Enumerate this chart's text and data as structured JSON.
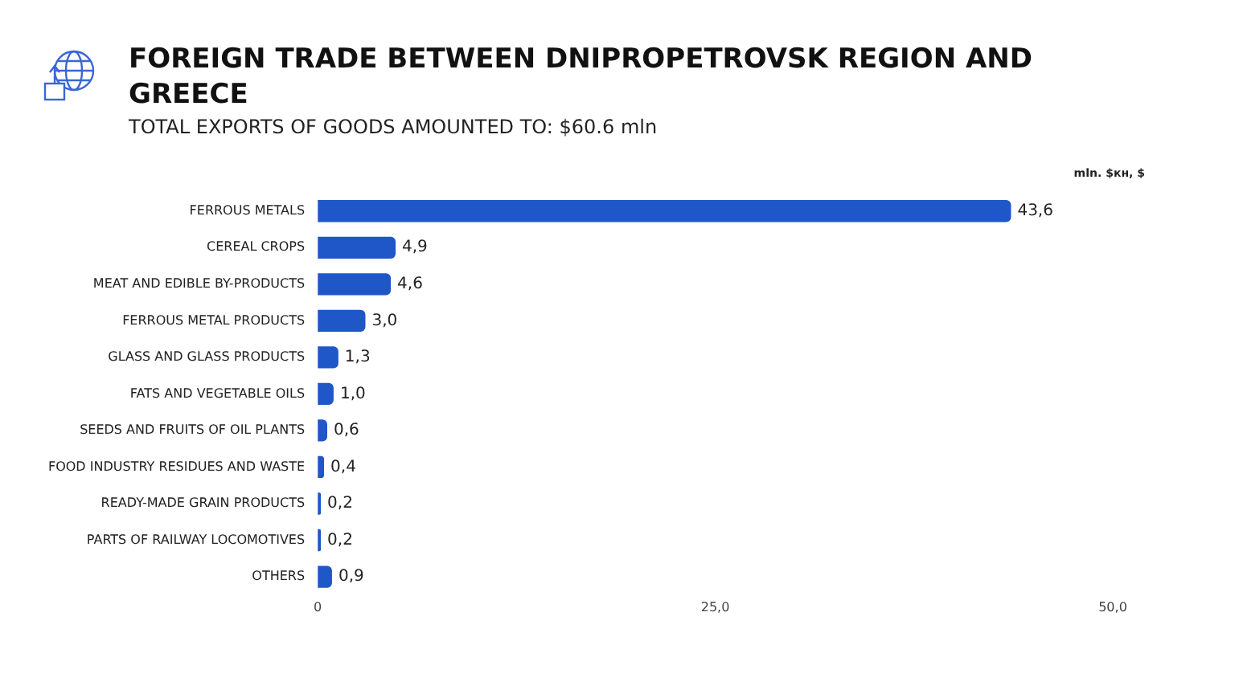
{
  "chart_data": {
    "type": "bar",
    "orientation": "horizontal",
    "title": "FOREIGN TRADE BETWEEN DNIPROPETROVSK REGION AND GREECE",
    "subtitle": "TOTAL EXPORTS OF GOODS AMOUNTED TO: $60.6 mln",
    "xlabel": "mln. $кн, $",
    "categories": [
      "FERROUS METALS",
      "CEREAL CROPS",
      "MEAT AND EDIBLE BY-PRODUCTS",
      "FERROUS METAL PRODUCTS",
      "GLASS AND GLASS PRODUCTS",
      "FATS AND VEGETABLE OILS",
      "SEEDS AND FRUITS OF OIL PLANTS",
      "FOOD INDUSTRY RESIDUES AND WASTE",
      "READY-MADE GRAIN PRODUCTS",
      "PARTS OF RAILWAY LOCOMOTIVES",
      "OTHERS"
    ],
    "values": [
      43.6,
      4.9,
      4.6,
      3.0,
      1.3,
      1.0,
      0.6,
      0.4,
      0.2,
      0.2,
      0.9
    ],
    "value_labels": [
      "43,6",
      "4,9",
      "4,6",
      "3,0",
      "1,3",
      "1,0",
      "0,6",
      "0,4",
      "0,2",
      "0,2",
      "0,9"
    ],
    "color": "#1f56c8",
    "xlim": [
      0,
      50
    ],
    "xticks": [
      0,
      {
        "value": 25,
        "label": "25,0"
      },
      {
        "value": 50,
        "label": "50,0"
      }
    ],
    "grid": false,
    "legend": false
  }
}
